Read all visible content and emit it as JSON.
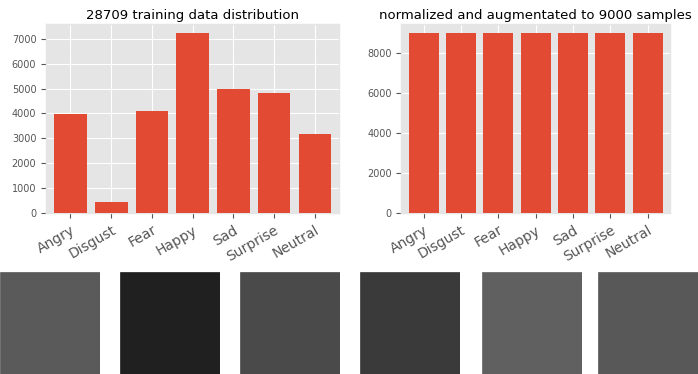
{
  "chart_data": [
    {
      "type": "bar",
      "title": "28709 training data distribution",
      "categories": [
        "Angry",
        "Disgust",
        "Fear",
        "Happy",
        "Sad",
        "Surprise",
        "Neutral"
      ],
      "values": [
        3995,
        436,
        4097,
        7215,
        4965,
        4830,
        3171
      ],
      "color": "#e24a33",
      "ylim": [
        0,
        7575
      ],
      "yticks": [
        0,
        1000,
        2000,
        3000,
        4000,
        5000,
        6000,
        7000
      ],
      "grid": true
    },
    {
      "type": "bar",
      "title": "normalized and augmentated to 9000 samples",
      "categories": [
        "Angry",
        "Disgust",
        "Fear",
        "Happy",
        "Sad",
        "Surprise",
        "Neutral"
      ],
      "values": [
        9000,
        9000,
        9000,
        9000,
        9000,
        9000,
        9000
      ],
      "color": "#e24a33",
      "ylim": [
        0,
        9450
      ],
      "yticks": [
        0,
        2000,
        4000,
        6000,
        8000
      ],
      "grid": true
    }
  ]
}
